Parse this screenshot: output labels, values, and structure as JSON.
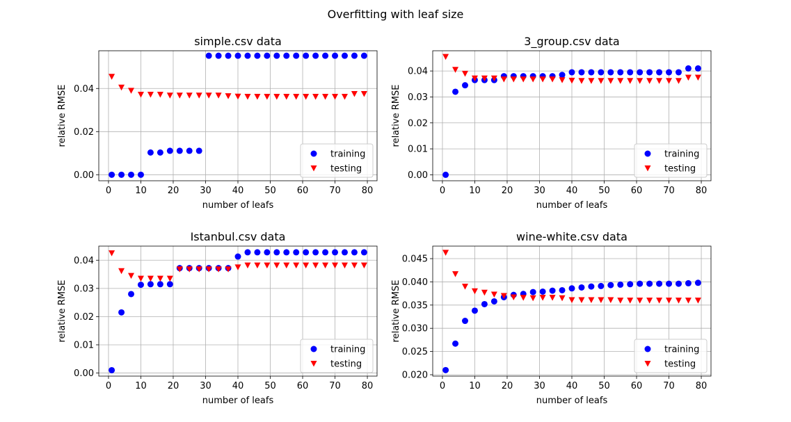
{
  "figure": {
    "title": "Overfitting with leaf size"
  },
  "legend": {
    "training": {
      "label": "training",
      "color": "#0000ff",
      "marker": "circle"
    },
    "testing": {
      "label": "testing",
      "color": "#ff0000",
      "marker": "triangle-down"
    }
  },
  "chart_data": [
    {
      "type": "scatter",
      "title": "simple.csv data",
      "xlabel": "number of leafs",
      "ylabel": "relative RMSE",
      "xlim": [
        -3,
        83
      ],
      "ylim": [
        -0.0028,
        0.0575
      ],
      "xticks": [
        0,
        10,
        20,
        30,
        40,
        50,
        60,
        70,
        80
      ],
      "yticks": [
        0.0,
        0.02,
        0.04
      ],
      "ytick_labels": [
        "0.00",
        "0.02",
        "0.04"
      ],
      "grid": true,
      "legend_position": "lower right",
      "x": [
        1,
        4,
        7,
        10,
        13,
        16,
        19,
        22,
        25,
        28,
        31,
        34,
        37,
        40,
        43,
        46,
        49,
        52,
        55,
        58,
        61,
        64,
        67,
        70,
        73,
        76,
        79
      ],
      "series": [
        {
          "name": "training",
          "values": [
            0.0,
            0.0,
            0.0,
            0.0,
            0.0103,
            0.0103,
            0.0111,
            0.0111,
            0.0111,
            0.0111,
            0.0552,
            0.0552,
            0.0552,
            0.0552,
            0.0552,
            0.0552,
            0.0552,
            0.0552,
            0.0552,
            0.0552,
            0.0552,
            0.0552,
            0.0552,
            0.0552,
            0.0552,
            0.0552,
            0.0552
          ]
        },
        {
          "name": "testing",
          "values": [
            0.0455,
            0.0405,
            0.039,
            0.0372,
            0.0372,
            0.0372,
            0.0368,
            0.0368,
            0.0368,
            0.0368,
            0.0368,
            0.0368,
            0.0365,
            0.0363,
            0.0362,
            0.0362,
            0.0362,
            0.0362,
            0.0362,
            0.0362,
            0.0362,
            0.0362,
            0.0362,
            0.0362,
            0.0362,
            0.0375,
            0.0375
          ]
        }
      ]
    },
    {
      "type": "scatter",
      "title": "3_group.csv data",
      "xlabel": "number of leafs",
      "ylabel": "relative RMSE",
      "xlim": [
        -3,
        83
      ],
      "ylim": [
        -0.0023,
        0.0478
      ],
      "xticks": [
        0,
        10,
        20,
        30,
        40,
        50,
        60,
        70,
        80
      ],
      "yticks": [
        0.0,
        0.01,
        0.02,
        0.03,
        0.04
      ],
      "ytick_labels": [
        "0.00",
        "0.01",
        "0.02",
        "0.03",
        "0.04"
      ],
      "grid": true,
      "legend_position": "lower right",
      "x": [
        1,
        4,
        7,
        10,
        13,
        16,
        19,
        22,
        25,
        28,
        31,
        34,
        37,
        40,
        43,
        46,
        49,
        52,
        55,
        58,
        61,
        64,
        67,
        70,
        73,
        76,
        79
      ],
      "series": [
        {
          "name": "training",
          "values": [
            0.0,
            0.032,
            0.0345,
            0.0365,
            0.0365,
            0.0365,
            0.038,
            0.038,
            0.038,
            0.038,
            0.038,
            0.038,
            0.0385,
            0.0395,
            0.0395,
            0.0395,
            0.0395,
            0.0395,
            0.0395,
            0.0395,
            0.0395,
            0.0395,
            0.0395,
            0.0395,
            0.0395,
            0.041,
            0.041
          ]
        },
        {
          "name": "testing",
          "values": [
            0.0455,
            0.0405,
            0.039,
            0.0372,
            0.0372,
            0.0372,
            0.0368,
            0.0368,
            0.0368,
            0.0368,
            0.0368,
            0.0368,
            0.0365,
            0.0363,
            0.0362,
            0.0362,
            0.0362,
            0.0362,
            0.0362,
            0.0362,
            0.0362,
            0.0362,
            0.0362,
            0.0362,
            0.0362,
            0.0375,
            0.0375
          ]
        }
      ]
    },
    {
      "type": "scatter",
      "title": "Istanbul.csv data",
      "xlabel": "number of leafs",
      "ylabel": "relative RMSE",
      "xlim": [
        -3,
        83
      ],
      "ylim": [
        -0.0011,
        0.045
      ],
      "xticks": [
        0,
        10,
        20,
        30,
        40,
        50,
        60,
        70,
        80
      ],
      "yticks": [
        0.0,
        0.01,
        0.02,
        0.03,
        0.04
      ],
      "ytick_labels": [
        "0.00",
        "0.01",
        "0.02",
        "0.03",
        "0.04"
      ],
      "grid": true,
      "legend_position": "lower right",
      "x": [
        1,
        4,
        7,
        10,
        13,
        16,
        19,
        22,
        25,
        28,
        31,
        34,
        37,
        40,
        43,
        46,
        49,
        52,
        55,
        58,
        61,
        64,
        67,
        70,
        73,
        76,
        79
      ],
      "series": [
        {
          "name": "training",
          "values": [
            0.001,
            0.0215,
            0.028,
            0.0313,
            0.0315,
            0.0315,
            0.0315,
            0.0372,
            0.0372,
            0.0372,
            0.0372,
            0.0372,
            0.0372,
            0.0413,
            0.0428,
            0.0428,
            0.0428,
            0.0428,
            0.0428,
            0.0428,
            0.0428,
            0.0428,
            0.0428,
            0.0428,
            0.0428,
            0.0428,
            0.0428
          ]
        },
        {
          "name": "testing",
          "values": [
            0.0425,
            0.0362,
            0.0345,
            0.0335,
            0.0335,
            0.0335,
            0.0335,
            0.0368,
            0.0368,
            0.0368,
            0.0368,
            0.0368,
            0.0368,
            0.0375,
            0.0382,
            0.0382,
            0.0382,
            0.0382,
            0.0382,
            0.0382,
            0.0382,
            0.0382,
            0.0382,
            0.0382,
            0.0382,
            0.0382,
            0.0382
          ]
        }
      ]
    },
    {
      "type": "scatter",
      "title": "wine-white.csv data",
      "xlabel": "number of leafs",
      "ylabel": "relative RMSE",
      "xlim": [
        -3,
        83
      ],
      "ylim": [
        0.0197,
        0.0477
      ],
      "xticks": [
        0,
        10,
        20,
        30,
        40,
        50,
        60,
        70,
        80
      ],
      "yticks": [
        0.02,
        0.025,
        0.03,
        0.035,
        0.04,
        0.045
      ],
      "ytick_labels": [
        "0.020",
        "0.025",
        "0.030",
        "0.035",
        "0.040",
        "0.045"
      ],
      "grid": true,
      "legend_position": "lower right",
      "x": [
        1,
        4,
        7,
        10,
        13,
        16,
        19,
        22,
        25,
        28,
        31,
        34,
        37,
        40,
        43,
        46,
        49,
        52,
        55,
        58,
        61,
        64,
        67,
        70,
        73,
        76,
        79
      ],
      "series": [
        {
          "name": "training",
          "values": [
            0.021,
            0.0267,
            0.0316,
            0.0338,
            0.0352,
            0.0358,
            0.0367,
            0.0372,
            0.0374,
            0.0378,
            0.0379,
            0.0381,
            0.0382,
            0.0386,
            0.0388,
            0.039,
            0.0391,
            0.0393,
            0.0394,
            0.0395,
            0.0396,
            0.0396,
            0.0396,
            0.0396,
            0.0396,
            0.0397,
            0.0398
          ]
        },
        {
          "name": "testing",
          "values": [
            0.0463,
            0.0417,
            0.039,
            0.038,
            0.0377,
            0.0373,
            0.037,
            0.0367,
            0.0366,
            0.0365,
            0.0366,
            0.0366,
            0.0365,
            0.0361,
            0.0361,
            0.0361,
            0.0361,
            0.0361,
            0.036,
            0.036,
            0.036,
            0.036,
            0.036,
            0.036,
            0.036,
            0.036,
            0.036
          ]
        }
      ]
    }
  ]
}
